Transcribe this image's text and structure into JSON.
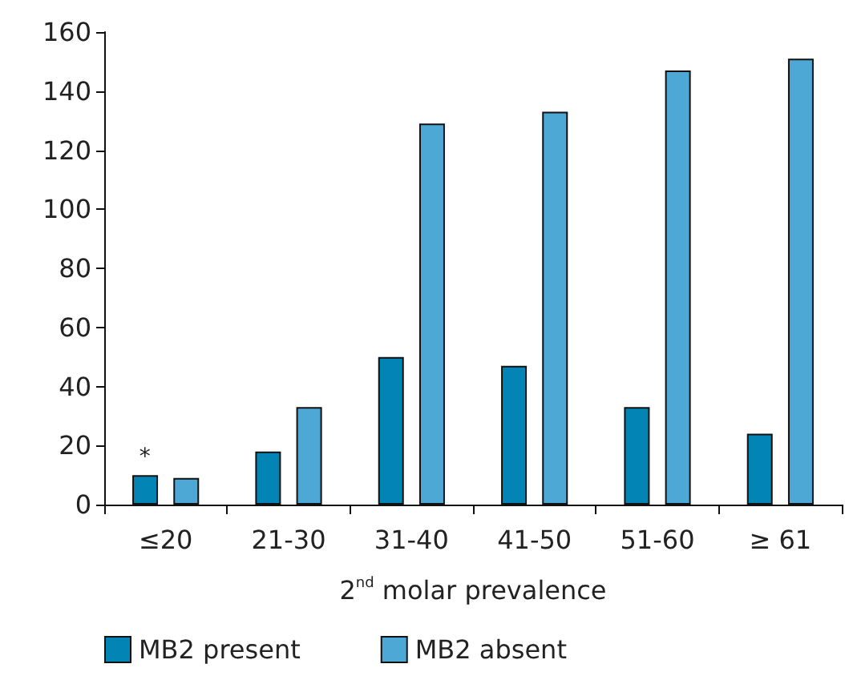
{
  "chart_data": {
    "type": "bar",
    "xlabel": "2$^{nd}$ molar prevalence",
    "categories": [
      "≤20",
      "21-30",
      "31-40",
      "41-50",
      "51-60",
      "≥ 61"
    ],
    "series": [
      {
        "name": "MB2 present",
        "color": "#0284b4",
        "values": [
          10,
          18,
          50,
          47,
          33,
          24
        ]
      },
      {
        "name": "MB2 absent",
        "color": "#4ea8d6",
        "values": [
          9,
          33,
          129,
          133,
          147,
          151
        ]
      }
    ],
    "ylim": [
      0,
      160
    ],
    "yticks": [
      0,
      20,
      40,
      60,
      80,
      100,
      120,
      140,
      160
    ],
    "grid": false,
    "legend": "bottom",
    "annotations": [
      "*"
    ]
  }
}
